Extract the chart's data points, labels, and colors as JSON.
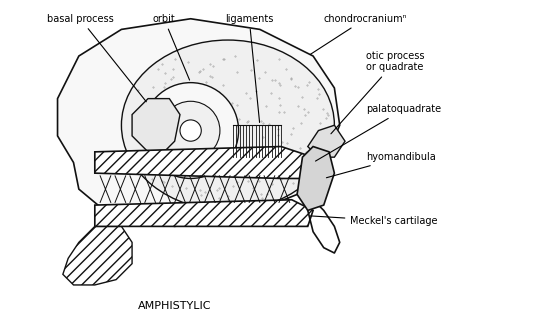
{
  "title": "AMPHISTYLIC",
  "background_color": "#ffffff",
  "labels": {
    "basal_process": "basal process",
    "orbit": "orbit",
    "ligaments": "ligaments",
    "chondrocranium": "chondrocraniumⁿ",
    "otic_process": "otic process\nor quadrate",
    "palatoquadrate": "palatoquadrate",
    "hyomandibula": "hyomandibula",
    "meckels": "Meckel's cartilage"
  },
  "line_color": "#111111",
  "fig_width": 5.41,
  "fig_height": 3.25,
  "dpi": 100
}
